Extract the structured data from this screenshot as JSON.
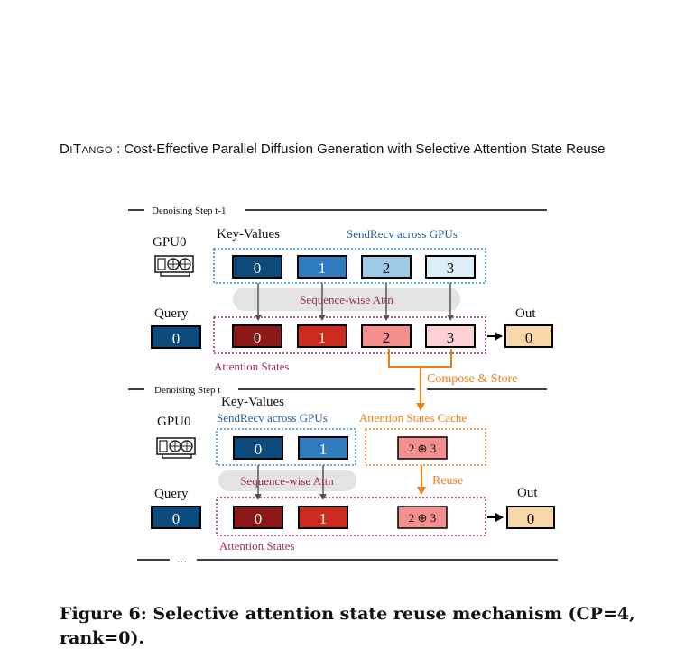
{
  "header": {
    "running_head_name": "DiTango",
    "running_head_rest": " : Cost-Effective Parallel Diffusion Generation with Selective Attention State Reuse"
  },
  "figure": {
    "step_prev": {
      "label": "Denoising Step t-1",
      "gpu": "GPU0",
      "kv_label": "Key-Values",
      "sendrecv": "SendRecv across GPUs",
      "kv_blocks": [
        "0",
        "1",
        "2",
        "3"
      ],
      "attn_label": "Sequence-wise Attn",
      "query_label": "Query",
      "query_value": "0",
      "state_blocks": [
        "0",
        "1",
        "2",
        "3"
      ],
      "states_label": "Attention States",
      "out_label": "Out",
      "out_value": "0",
      "compose_label": "Compose & Store"
    },
    "step_curr": {
      "label": "Denoising Step t",
      "gpu": "GPU0",
      "kv_label": "Key-Values",
      "sendrecv": "SendRecv across GPUs",
      "kv_blocks": [
        "0",
        "1"
      ],
      "cache_label": "Attention States Cache",
      "cache_value": "2 ⊕ 3",
      "reuse_label": "Reuse",
      "attn_label": "Sequence-wise Attn",
      "query_label": "Query",
      "query_value": "0",
      "state_blocks": [
        "0",
        "1"
      ],
      "reused_value": "2 ⊕ 3",
      "states_label": "Attention States",
      "out_label": "Out",
      "out_value": "0"
    },
    "ellipsis": "…",
    "colors": {
      "kv": [
        "#0d4a7c",
        "#2f7cc0",
        "#9fcbe8",
        "#dceefa"
      ],
      "states": [
        "#8c1818",
        "#cc2a1e",
        "#f48f8d",
        "#fbd1d6"
      ],
      "query": "#0d4a7c",
      "out": "#f8d7a8",
      "blue_text": "#1f5f9a",
      "magenta_text": "#a02d63",
      "orange": "#ee7d15"
    }
  },
  "caption": "Figure 6: Selective attention state reuse mechanism (CP=4, rank=0)."
}
